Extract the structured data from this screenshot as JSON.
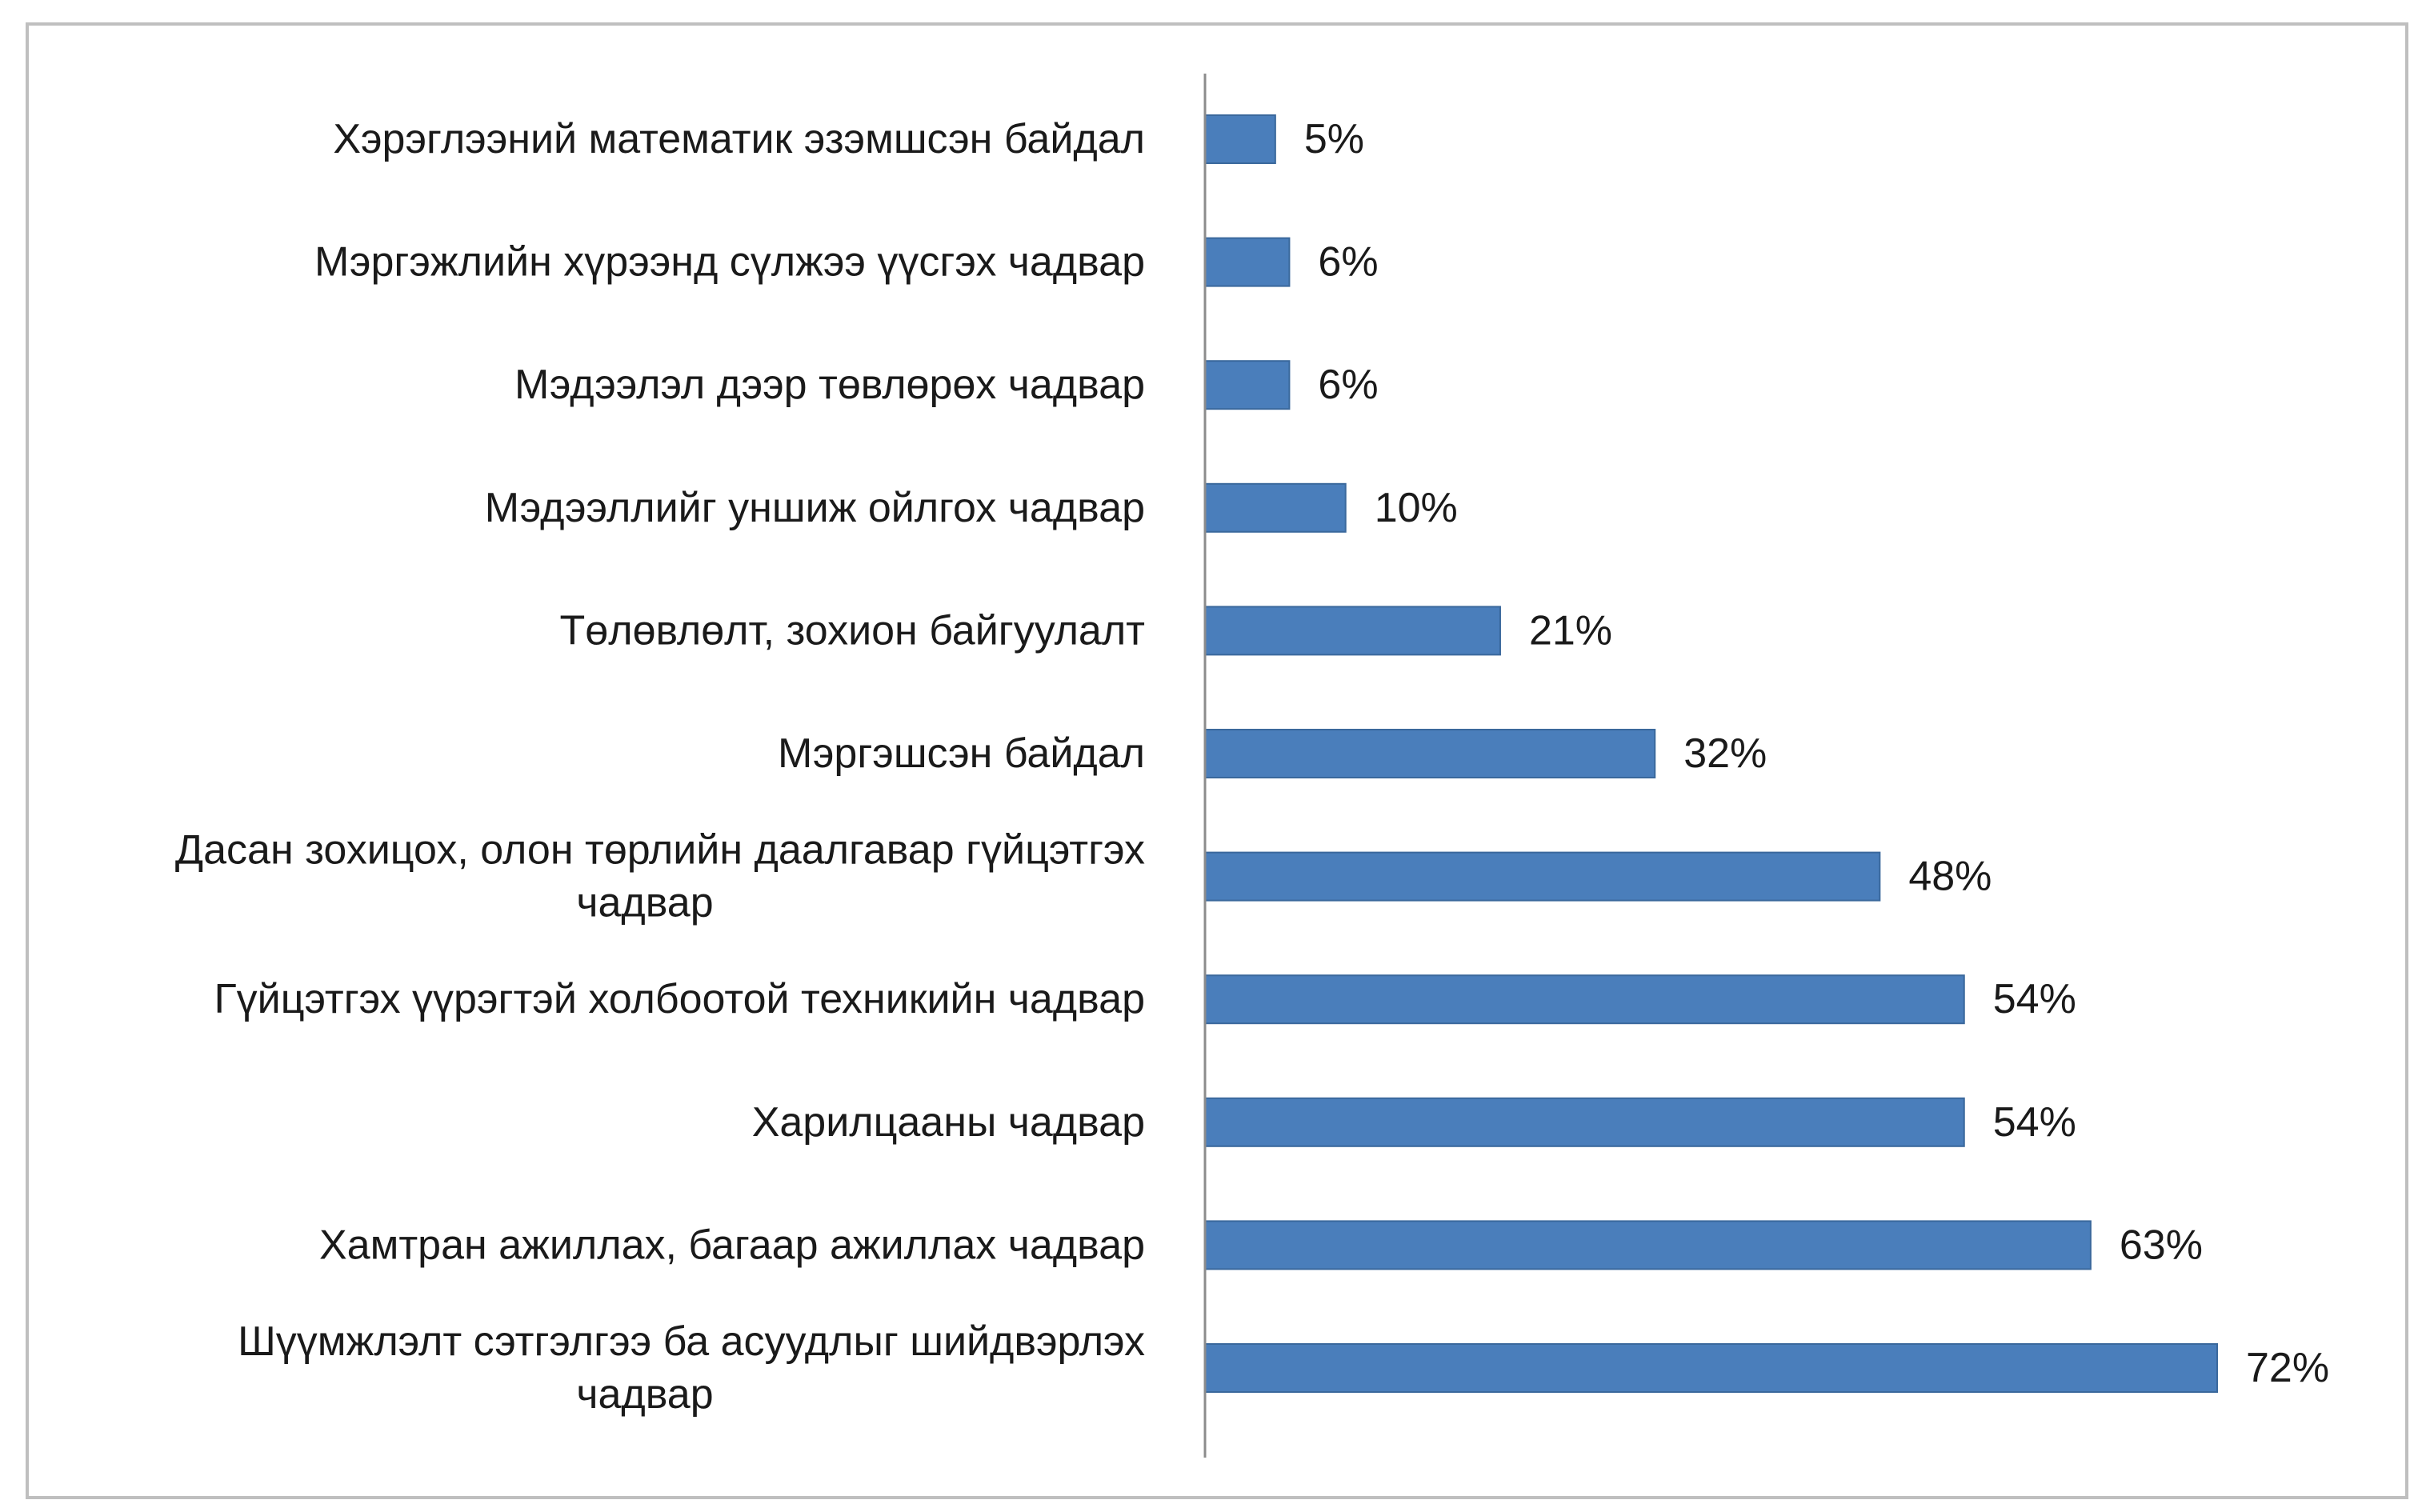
{
  "chart_data": {
    "type": "bar",
    "orientation": "horizontal",
    "categories": [
      [
        "Хэрэглээний математик эзэмшсэн байдал"
      ],
      [
        "Мэргэжлийн хүрээнд сүлжээ үүсгэх чадвар"
      ],
      [
        "Мэдээлэл дээр төвлөрөх чадвар"
      ],
      [
        "Мэдээллийг уншиж ойлгох чадвар"
      ],
      [
        "Төлөвлөлт, зохион байгуулалт"
      ],
      [
        "Мэргэшсэн байдал"
      ],
      [
        "Дасан зохицох, олон төрлийн даалгавар гүйцэтгэх",
        "чадвар"
      ],
      [
        "Гүйцэтгэх үүрэгтэй холбоотой техникийн чадвар"
      ],
      [
        "Харилцааны чадвар"
      ],
      [
        "Хамтран ажиллах, багаар ажиллах чадвар"
      ],
      [
        "Шүүмжлэлт сэтгэлгээ ба асуудлыг шийдвэрлэх",
        "чадвар"
      ]
    ],
    "values": [
      5,
      6,
      6,
      10,
      21,
      32,
      48,
      54,
      54,
      63,
      72
    ],
    "value_labels": [
      "5%",
      "6%",
      "6%",
      "10%",
      "21%",
      "32%",
      "48%",
      "54%",
      "54%",
      "63%",
      "72%"
    ],
    "unit": "%",
    "xlim": [
      0,
      80
    ],
    "bar_color": "#4a7ebb",
    "bar_edge_color": "#3a689c",
    "axis_color": "#8c8c8c",
    "frame_color": "#bfbfbf",
    "grid": false,
    "legend": "none"
  }
}
